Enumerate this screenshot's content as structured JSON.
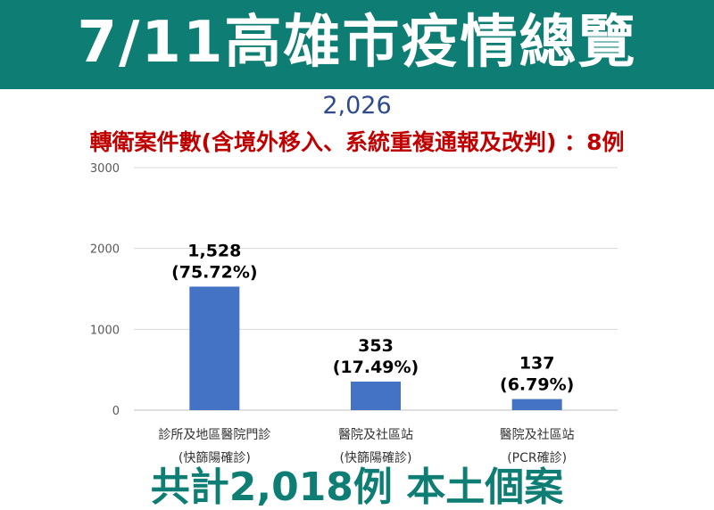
{
  "header": {
    "title": "7/11高雄市疫情總覽"
  },
  "subtotal": "2,026",
  "note": "轉衛案件數(含境外移入、系統重複通報及改判) ：8例",
  "footer": "共計2,018例 本土個案",
  "colors": {
    "banner": "#0e7e74",
    "bar": "#4472c4",
    "note": "#c00000"
  },
  "chart_data": {
    "type": "bar",
    "categories": [
      [
        "診所及地區醫院門診",
        "(快篩陽確診)"
      ],
      [
        "醫院及社區站",
        "(快篩陽確診)"
      ],
      [
        "醫院及社區站",
        "(PCR確診)"
      ]
    ],
    "values": [
      1528,
      353,
      137
    ],
    "value_labels": [
      "1,528",
      "353",
      "137"
    ],
    "percent_labels": [
      "(75.72%)",
      "(17.49%)",
      "(6.79%)"
    ],
    "yticks": [
      "0",
      "1000",
      "2000",
      "3000"
    ],
    "ylim": [
      0,
      3000
    ],
    "grid": true,
    "title": "",
    "xlabel": "",
    "ylabel": ""
  }
}
